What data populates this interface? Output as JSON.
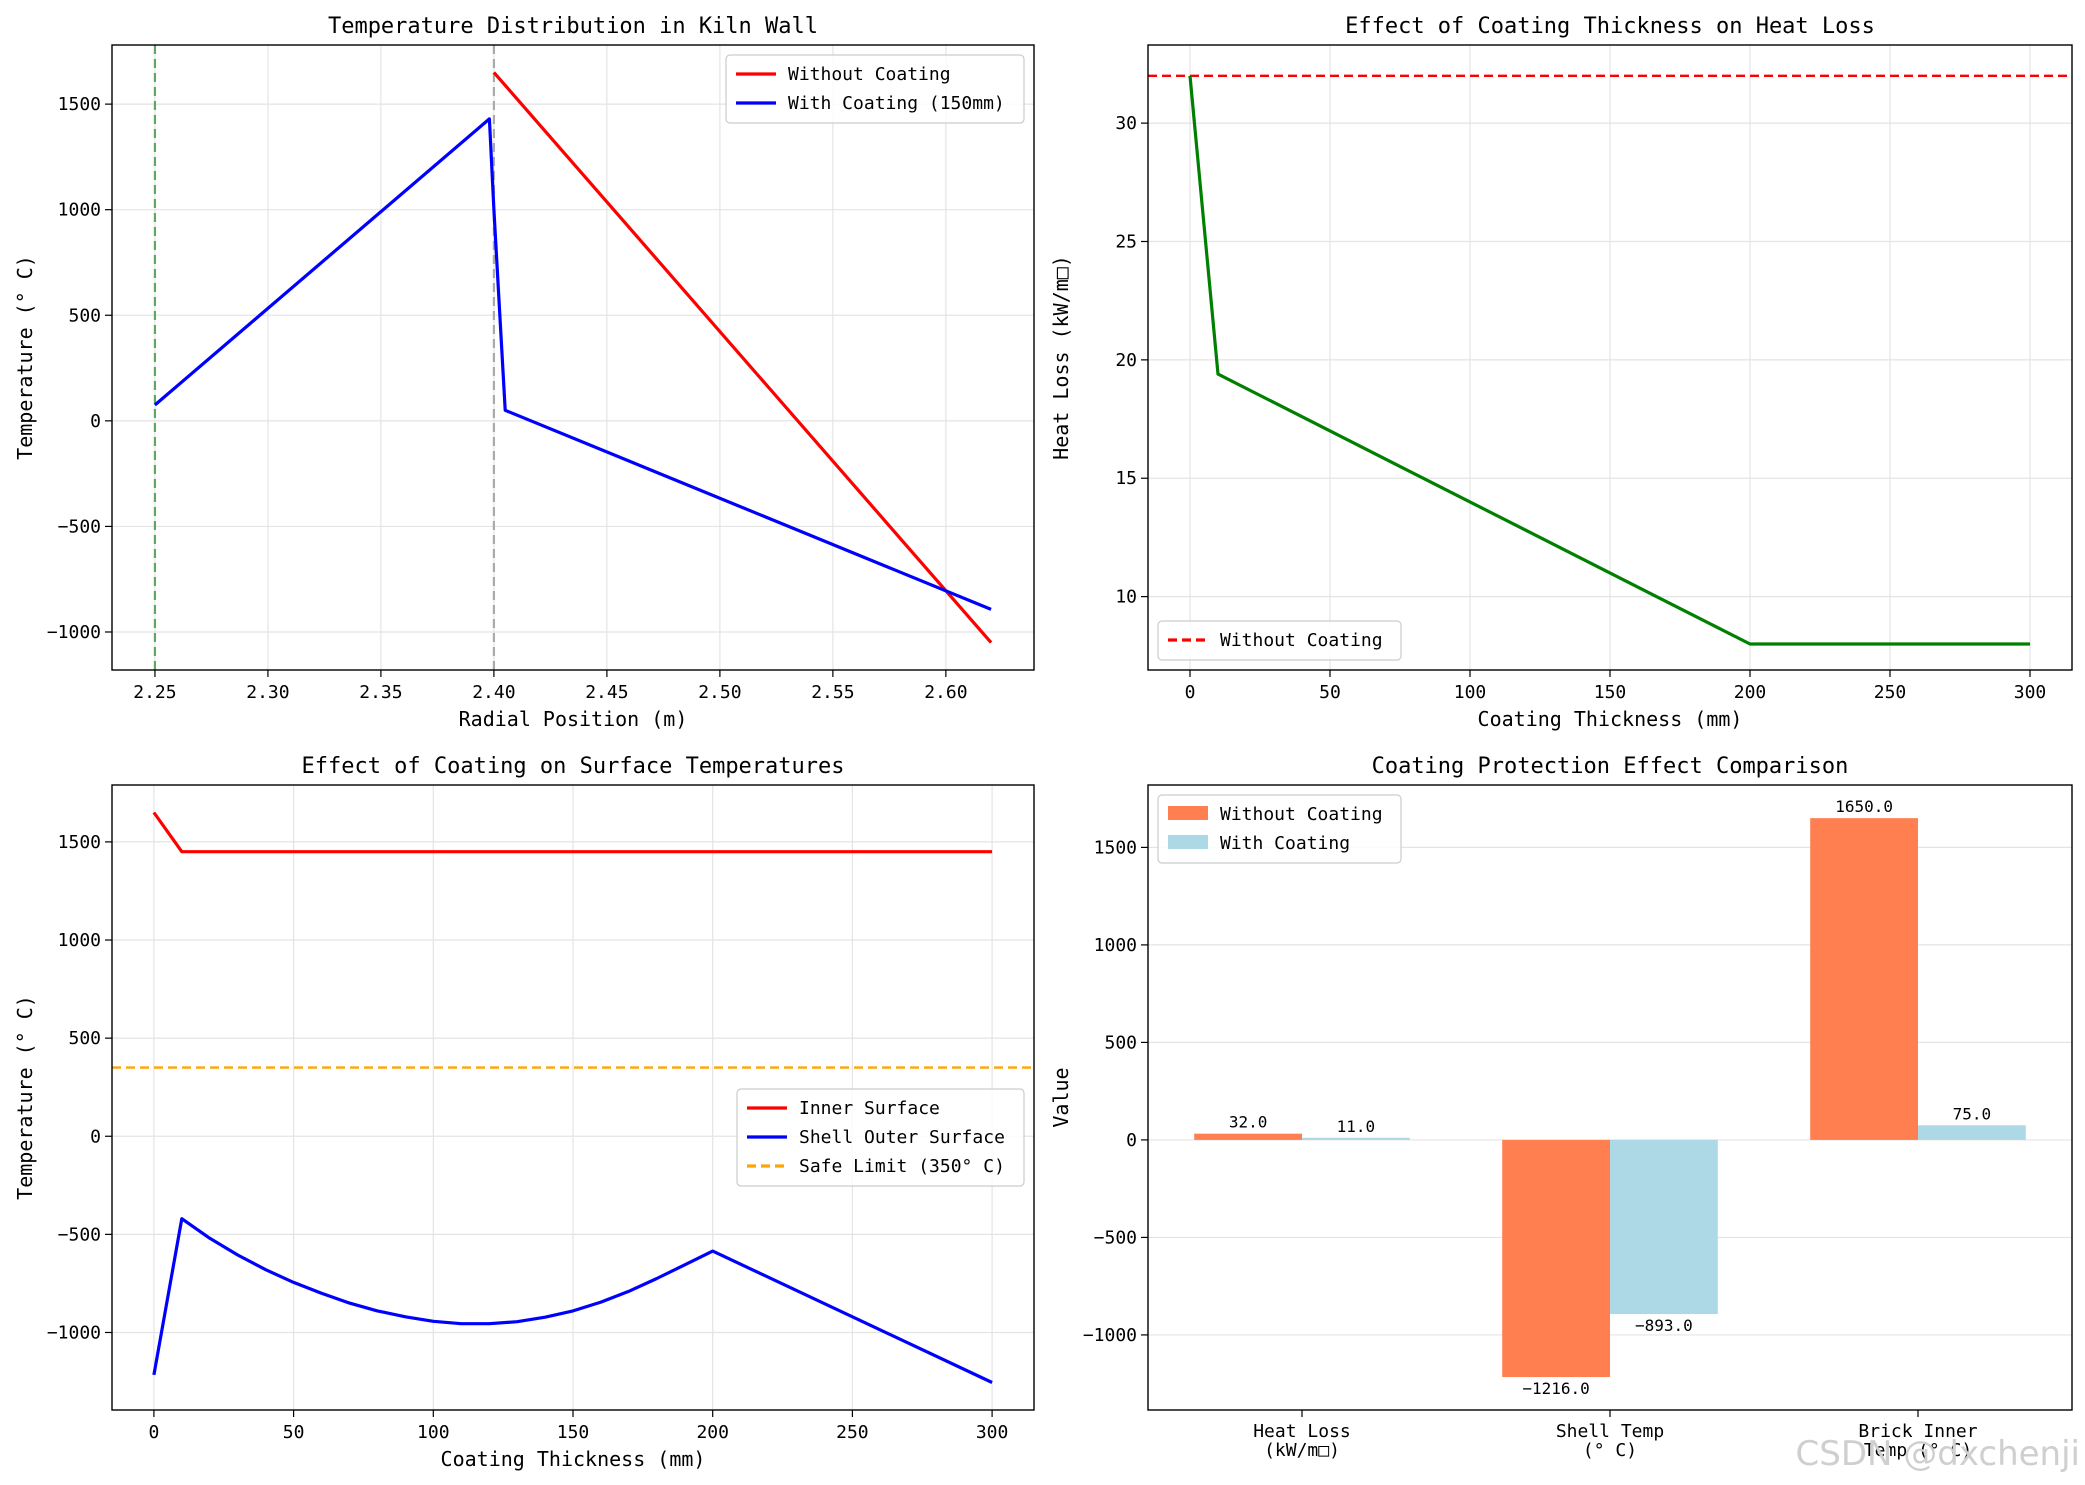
{
  "chart_data": [
    {
      "type": "line",
      "title": "Temperature Distribution in Kiln Wall",
      "xlabel": "Radial Position (m)",
      "ylabel": "Temperature (° C)",
      "xlim": [
        2.231,
        2.639
      ],
      "ylim": [
        -1180,
        1780
      ],
      "xticks": [
        2.25,
        2.3,
        2.35,
        2.4,
        2.45,
        2.5,
        2.55,
        2.6
      ],
      "xtick_labels": [
        "2.25",
        "2.30",
        "2.35",
        "2.40",
        "2.45",
        "2.50",
        "2.55",
        "2.60"
      ],
      "yticks": [
        -1000,
        -500,
        0,
        500,
        1000,
        1500
      ],
      "ytick_labels": [
        "−1000",
        "−500",
        "0",
        "500",
        "1000",
        "1500"
      ],
      "grid": true,
      "legend": "top-right",
      "vlines": [
        {
          "x": 2.25,
          "color": "#5cab5c",
          "style": "dashed"
        },
        {
          "x": 2.4,
          "color": "#aaaaaa",
          "style": "dashed"
        }
      ],
      "series": [
        {
          "name": "Without Coating",
          "color": "#ff0000",
          "x": [
            2.4,
            2.62
          ],
          "y": [
            1650,
            -1050
          ]
        },
        {
          "name": "With Coating (150mm)",
          "color": "#0000ff",
          "x": [
            2.25,
            2.398,
            2.4,
            2.405,
            2.62
          ],
          "y": [
            75,
            1430,
            1000,
            50,
            -893
          ]
        }
      ]
    },
    {
      "type": "line",
      "title": "Effect of Coating Thickness on Heat Loss",
      "xlabel": "Coating Thickness (mm)",
      "ylabel": "Heat Loss (kW/m□)",
      "xlim": [
        -15,
        315
      ],
      "ylim": [
        6.9,
        33.3
      ],
      "xticks": [
        0,
        50,
        100,
        150,
        200,
        250,
        300
      ],
      "xtick_labels": [
        "0",
        "50",
        "100",
        "150",
        "200",
        "250",
        "300"
      ],
      "yticks": [
        10,
        15,
        20,
        25,
        30
      ],
      "ytick_labels": [
        "10",
        "15",
        "20",
        "25",
        "30"
      ],
      "grid": true,
      "legend": "bottom-left",
      "hlines": [
        {
          "y": 32,
          "color": "#ff0000",
          "style": "dashed",
          "name": "Without Coating"
        }
      ],
      "series": [
        {
          "name": "",
          "color": "#008000",
          "x": [
            0,
            10,
            200,
            300
          ],
          "y": [
            32,
            19.4,
            8.0,
            8.0
          ]
        }
      ]
    },
    {
      "type": "line",
      "title": "Effect of Coating on Surface Temperatures",
      "xlabel": "Coating Thickness (mm)",
      "ylabel": "Temperature (° C)",
      "xlim": [
        -15,
        315
      ],
      "ylim": [
        -1395,
        1790
      ],
      "xticks": [
        0,
        50,
        100,
        150,
        200,
        250,
        300
      ],
      "xtick_labels": [
        "0",
        "50",
        "100",
        "150",
        "200",
        "250",
        "300"
      ],
      "yticks": [
        -1000,
        -500,
        0,
        500,
        1000,
        1500
      ],
      "ytick_labels": [
        "−1000",
        "−500",
        "0",
        "500",
        "1000",
        "1500"
      ],
      "grid": true,
      "legend": "center-right",
      "hlines": [
        {
          "y": 350,
          "color": "#ffa500",
          "style": "dashed",
          "name": "Safe Limit (350° C)"
        }
      ],
      "series": [
        {
          "name": "Inner Surface",
          "color": "#ff0000",
          "x": [
            0,
            10,
            300
          ],
          "y": [
            1650,
            1450,
            1450
          ]
        },
        {
          "name": "Shell Outer Surface",
          "color": "#0000ff",
          "x": [
            0,
            10,
            20,
            30,
            40,
            50,
            60,
            70,
            80,
            90,
            100,
            110,
            120,
            130,
            140,
            150,
            160,
            170,
            180,
            190,
            200,
            300
          ],
          "y": [
            -1216,
            -420,
            -520,
            -605,
            -680,
            -745,
            -800,
            -850,
            -890,
            -920,
            -943,
            -955,
            -955,
            -945,
            -922,
            -890,
            -845,
            -790,
            -725,
            -655,
            -585,
            -1255
          ]
        }
      ]
    },
    {
      "type": "bar",
      "title": "Coating Protection Effect Comparison",
      "xlabel": "",
      "ylabel": "Value",
      "ylim": [
        -1385,
        1820
      ],
      "yticks": [
        -1000,
        -500,
        0,
        500,
        1000,
        1500
      ],
      "ytick_labels": [
        "−1000",
        "−500",
        "0",
        "500",
        "1000",
        "1500"
      ],
      "grid": true,
      "legend": "top-left",
      "categories": [
        [
          "Heat Loss",
          "(kW/m□)"
        ],
        [
          "Shell Temp",
          "(° C)"
        ],
        [
          "Brick Inner",
          "Temp (° C)"
        ]
      ],
      "series": [
        {
          "name": "Without Coating",
          "color": "#ff7f50",
          "values": [
            32.0,
            -1216.0,
            1650.0
          ],
          "labels": [
            "32.0",
            "−1216.0",
            "1650.0"
          ]
        },
        {
          "name": "With Coating",
          "color": "#add8e6",
          "values": [
            11.0,
            -893.0,
            75.0
          ],
          "labels": [
            "11.0",
            "−893.0",
            "75.0"
          ]
        }
      ]
    }
  ],
  "watermark": "CSDN @dxchenji"
}
